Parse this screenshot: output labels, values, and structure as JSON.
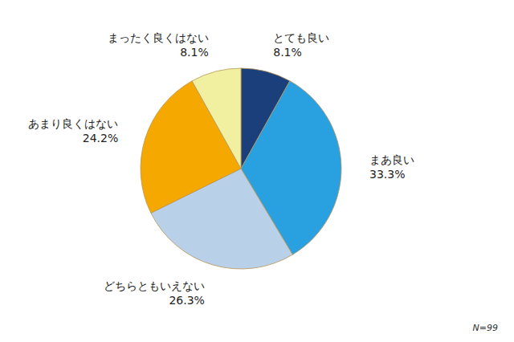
{
  "chart_data": {
    "type": "pie",
    "categories": [
      "とても良い",
      "まあ良い",
      "どちらともいえない",
      "あまり良くはない",
      "まったく良くはない"
    ],
    "values": [
      8.1,
      33.3,
      26.3,
      24.2,
      8.1
    ],
    "value_labels": [
      "8.1%",
      "33.3%",
      "26.3%",
      "24.2%",
      "8.1%"
    ],
    "colors": [
      "#1a3f7a",
      "#29a0e0",
      "#b8d0e8",
      "#f5a800",
      "#f0f0a0"
    ],
    "data_labels": true,
    "annotations": [
      "N=99"
    ]
  }
}
